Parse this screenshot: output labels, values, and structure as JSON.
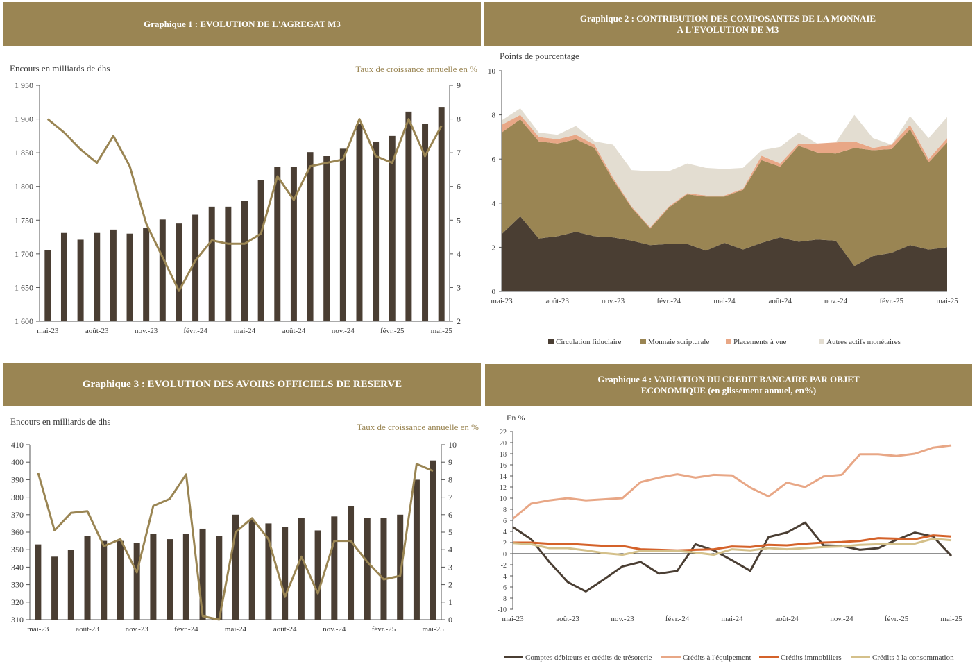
{
  "colors": {
    "banner": "#9a8553",
    "bar": "#4a3e33",
    "line": "#9a8553",
    "axis": "#555555"
  },
  "panels": {
    "p1": {
      "title": "Graphique 1 : EVOLUTION DE L'AGREGAT M3"
    },
    "p2": {
      "title_line1": "Graphique 2 : CONTRIBUTION DES COMPOSANTES DE  LA MONNAIE",
      "title_line2": "A L'EVOLUTION DE M3"
    },
    "p3": {
      "title": "Graphique 3 : EVOLUTION DES AVOIRS OFFICIELS DE RESERVE"
    },
    "p4": {
      "title_line1": "Graphique 4 : VARIATION DU CREDIT BANCAIRE PAR OBJET",
      "title_line2": "ECONOMIQUE (en glissement annuel, en%)"
    }
  },
  "chart_data": [
    {
      "type": "bar",
      "title": "Graphique 1 : EVOLUTION DE L'AGREGAT M3",
      "ylabel": "Encours en milliards de dhs",
      "y2label": "Taux de croissance annuelle en %",
      "ylim": [
        1600,
        1950
      ],
      "y2lim": [
        2,
        9
      ],
      "yticks": [
        "1 950",
        "1 900",
        "1 850",
        "1 800",
        "1 750",
        "1 700",
        "1 650",
        "1 600"
      ],
      "y2ticks": [
        "9",
        "8",
        "7",
        "6",
        "5",
        "4",
        "3",
        "2"
      ],
      "xticklabels": [
        "mai-23",
        "août-23",
        "nov.-23",
        "févr.-24",
        "mai-24",
        "août-24",
        "nov.-24",
        "févr.-25",
        "mai-25"
      ],
      "series": [
        {
          "name": "Encours",
          "kind": "bar",
          "values": [
            1706,
            1731,
            1721,
            1731,
            1736,
            1730,
            1738,
            1751,
            1745,
            1758,
            1770,
            1770,
            1779,
            1810,
            1829,
            1829,
            1851,
            1845,
            1856,
            1893,
            1866,
            1875,
            1911,
            1893,
            1918
          ]
        },
        {
          "name": "Taux",
          "kind": "line",
          "values": [
            8.0,
            7.6,
            7.1,
            6.7,
            7.5,
            6.6,
            4.9,
            3.9,
            2.9,
            3.8,
            4.4,
            4.3,
            4.3,
            4.6,
            6.3,
            5.6,
            6.6,
            6.7,
            6.8,
            8.0,
            6.9,
            6.7,
            8.0,
            6.9,
            7.8
          ]
        }
      ]
    },
    {
      "type": "area",
      "title": "Graphique 2 : CONTRIBUTION DES COMPOSANTES DE  LA MONNAIE A L'EVOLUTION DE M3",
      "ylabel": "Points de pourcentage",
      "ylim": [
        0,
        10
      ],
      "yticks": [
        "10",
        "8",
        "6",
        "4",
        "2",
        "0"
      ],
      "xticklabels": [
        "mai-23",
        "août-23",
        "nov.-23",
        "févr.-24",
        "mai-24",
        "août-24",
        "nov.-24",
        "févr.-25",
        "mai-25"
      ],
      "series": [
        {
          "name": "Circulation fiduciaire",
          "color": "#4a3e33",
          "values": [
            2.6,
            3.4,
            2.4,
            2.5,
            2.7,
            2.5,
            2.45,
            2.3,
            2.1,
            2.15,
            2.15,
            1.85,
            2.2,
            1.9,
            2.2,
            2.45,
            2.25,
            2.35,
            2.3,
            1.15,
            1.6,
            1.75,
            2.1,
            1.9,
            2.0
          ]
        },
        {
          "name": "Monnaie scripturale",
          "color": "#9a8553",
          "values": [
            4.6,
            4.4,
            4.4,
            4.2,
            4.2,
            4.0,
            2.6,
            1.5,
            0.75,
            1.65,
            2.25,
            2.45,
            2.1,
            2.7,
            3.75,
            3.2,
            4.35,
            3.95,
            3.95,
            5.35,
            4.8,
            4.7,
            5.25,
            3.95,
            4.75
          ]
        },
        {
          "name": "Placements à vue",
          "color": "#e8a786",
          "values": [
            0.35,
            0.2,
            0.2,
            0.2,
            0.2,
            0.15,
            0.1,
            0.05,
            0.05,
            0.05,
            0.05,
            0.05,
            0.05,
            0.05,
            0.2,
            0.15,
            0.1,
            0.4,
            0.5,
            0.3,
            0.1,
            0.2,
            0.2,
            0.15,
            0.2
          ]
        },
        {
          "name": "Autres actifs monétaires",
          "color": "#e3ddd1",
          "values": [
            0.2,
            0.3,
            0.2,
            0.2,
            0.4,
            0.15,
            1.5,
            1.65,
            2.55,
            1.6,
            1.35,
            1.25,
            1.2,
            0.95,
            0.25,
            0.75,
            0.5,
            0.0,
            0.0,
            1.2,
            0.45,
            0.0,
            0.4,
            0.95,
            0.95
          ]
        }
      ]
    },
    {
      "type": "bar",
      "title": "Graphique 3 : EVOLUTION DES AVOIRS OFFICIELS DE RESERVE",
      "ylabel": "Encours en milliards de dhs",
      "y2label": "Taux de croissance annuelle en %",
      "ylim": [
        310,
        410
      ],
      "y2lim": [
        0,
        10
      ],
      "yticks": [
        "410",
        "400",
        "390",
        "380",
        "370",
        "360",
        "350",
        "340",
        "330",
        "320",
        "310"
      ],
      "y2ticks": [
        "10",
        "9",
        "8",
        "7",
        "6",
        "5",
        "4",
        "3",
        "2",
        "1",
        "0"
      ],
      "xticklabels": [
        "mai-23",
        "août-23",
        "nov.-23",
        "févr.-24",
        "mai-24",
        "août-24",
        "nov.-24",
        "févr.-25",
        "mai-25"
      ],
      "series": [
        {
          "name": "Encours",
          "kind": "bar",
          "values": [
            353,
            346,
            350,
            358,
            355,
            355,
            354,
            359,
            356,
            359,
            362,
            358,
            370,
            367,
            365,
            363,
            368,
            361,
            369,
            375,
            368,
            368,
            370,
            390,
            401
          ]
        },
        {
          "name": "Taux",
          "kind": "line",
          "values": [
            8.4,
            5.1,
            6.1,
            6.2,
            4.2,
            4.6,
            2.7,
            6.5,
            6.9,
            8.3,
            0.2,
            0.0,
            5.0,
            5.8,
            4.6,
            1.3,
            3.6,
            1.5,
            4.5,
            4.5,
            3.3,
            2.3,
            2.5,
            8.9,
            8.5
          ]
        }
      ]
    },
    {
      "type": "line",
      "title": "Graphique 4 : VARIATION DU CREDIT BANCAIRE PAR OBJET ECONOMIQUE (en glissement annuel, en%)",
      "ylabel": "En %",
      "ylim": [
        -10,
        22
      ],
      "yticks": [
        "22",
        "20",
        "18",
        "16",
        "14",
        "12",
        "10",
        "8",
        "6",
        "4",
        "2",
        "0",
        "-2",
        "-4",
        "-6",
        "-8",
        "-10"
      ],
      "xticklabels": [
        "mai-23",
        "août-23",
        "nov.-23",
        "févr.-24",
        "mai-24",
        "août-24",
        "nov.-24",
        "févr.-25",
        "mai-25"
      ],
      "series": [
        {
          "name": "Comptes débiteurs et crédits de trésorerie",
          "color": "#4a3e33",
          "values": [
            4.8,
            2.6,
            -1.5,
            -5.1,
            -6.8,
            -4.6,
            -2.3,
            -1.5,
            -3.6,
            -3.1,
            1.7,
            0.6,
            -1.2,
            -3.1,
            3.0,
            3.8,
            5.6,
            1.5,
            1.4,
            0.7,
            1.0,
            2.5,
            3.8,
            3.1,
            -0.4
          ]
        },
        {
          "name": "Crédits à l'équipement",
          "color": "#e8a786",
          "values": [
            6.3,
            9.0,
            9.6,
            10.0,
            9.6,
            9.8,
            10.0,
            12.9,
            13.7,
            14.3,
            13.7,
            14.2,
            14.1,
            11.9,
            10.3,
            12.8,
            12.0,
            13.9,
            14.2,
            17.9,
            17.9,
            17.6,
            18.0,
            19.1,
            19.5
          ]
        },
        {
          "name": "Crédits immobiliers",
          "color": "#d4622a",
          "values": [
            2.0,
            2.0,
            1.8,
            1.8,
            1.6,
            1.4,
            1.4,
            0.8,
            0.7,
            0.6,
            0.7,
            0.8,
            1.3,
            1.2,
            1.6,
            1.5,
            1.8,
            2.0,
            2.1,
            2.3,
            2.8,
            2.7,
            2.6,
            3.3,
            3.1
          ]
        },
        {
          "name": "Crédits à la consommation",
          "color": "#d4c08a",
          "values": [
            1.9,
            1.7,
            1.0,
            1.0,
            0.6,
            0.1,
            -0.2,
            0.5,
            0.5,
            0.5,
            0.2,
            -0.2,
            0.8,
            0.6,
            1.0,
            0.8,
            1.0,
            1.2,
            1.3,
            1.6,
            1.7,
            1.7,
            1.8,
            2.7,
            2.4
          ]
        }
      ]
    }
  ]
}
